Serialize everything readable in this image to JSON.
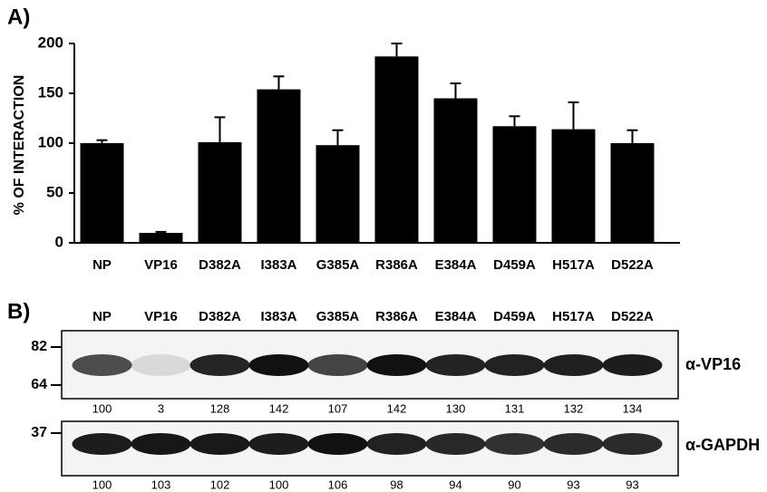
{
  "chart_data": {
    "type": "bar",
    "panel_label": "A)",
    "ylabel": "% OF INTERACTION",
    "categories": [
      "NP",
      "VP16",
      "D382A",
      "I383A",
      "G385A",
      "R386A",
      "E384A",
      "D459A",
      "H517A",
      "D522A"
    ],
    "values": [
      100,
      10,
      101,
      154,
      98,
      187,
      145,
      117,
      114,
      100
    ],
    "errors": [
      3,
      1,
      25,
      13,
      15,
      13,
      15,
      10,
      27,
      13
    ],
    "color": "#000000",
    "ylim": [
      0,
      200
    ],
    "yticks": [
      0,
      50,
      100,
      150,
      200
    ],
    "grid": false
  },
  "blot": {
    "panel_label": "B)",
    "lanes": [
      "NP",
      "VP16",
      "D382A",
      "I383A",
      "G385A",
      "R386A",
      "E384A",
      "D459A",
      "H517A",
      "D522A"
    ],
    "panels": [
      {
        "antibody": "α-VP16",
        "markers": [
          "82",
          "64"
        ],
        "quantification": [
          100,
          3,
          128,
          142,
          107,
          142,
          130,
          131,
          132,
          134
        ]
      },
      {
        "antibody": "α-GAPDH",
        "markers": [
          "37"
        ],
        "quantification": [
          100,
          103,
          102,
          100,
          106,
          98,
          94,
          90,
          93,
          93
        ]
      }
    ]
  }
}
